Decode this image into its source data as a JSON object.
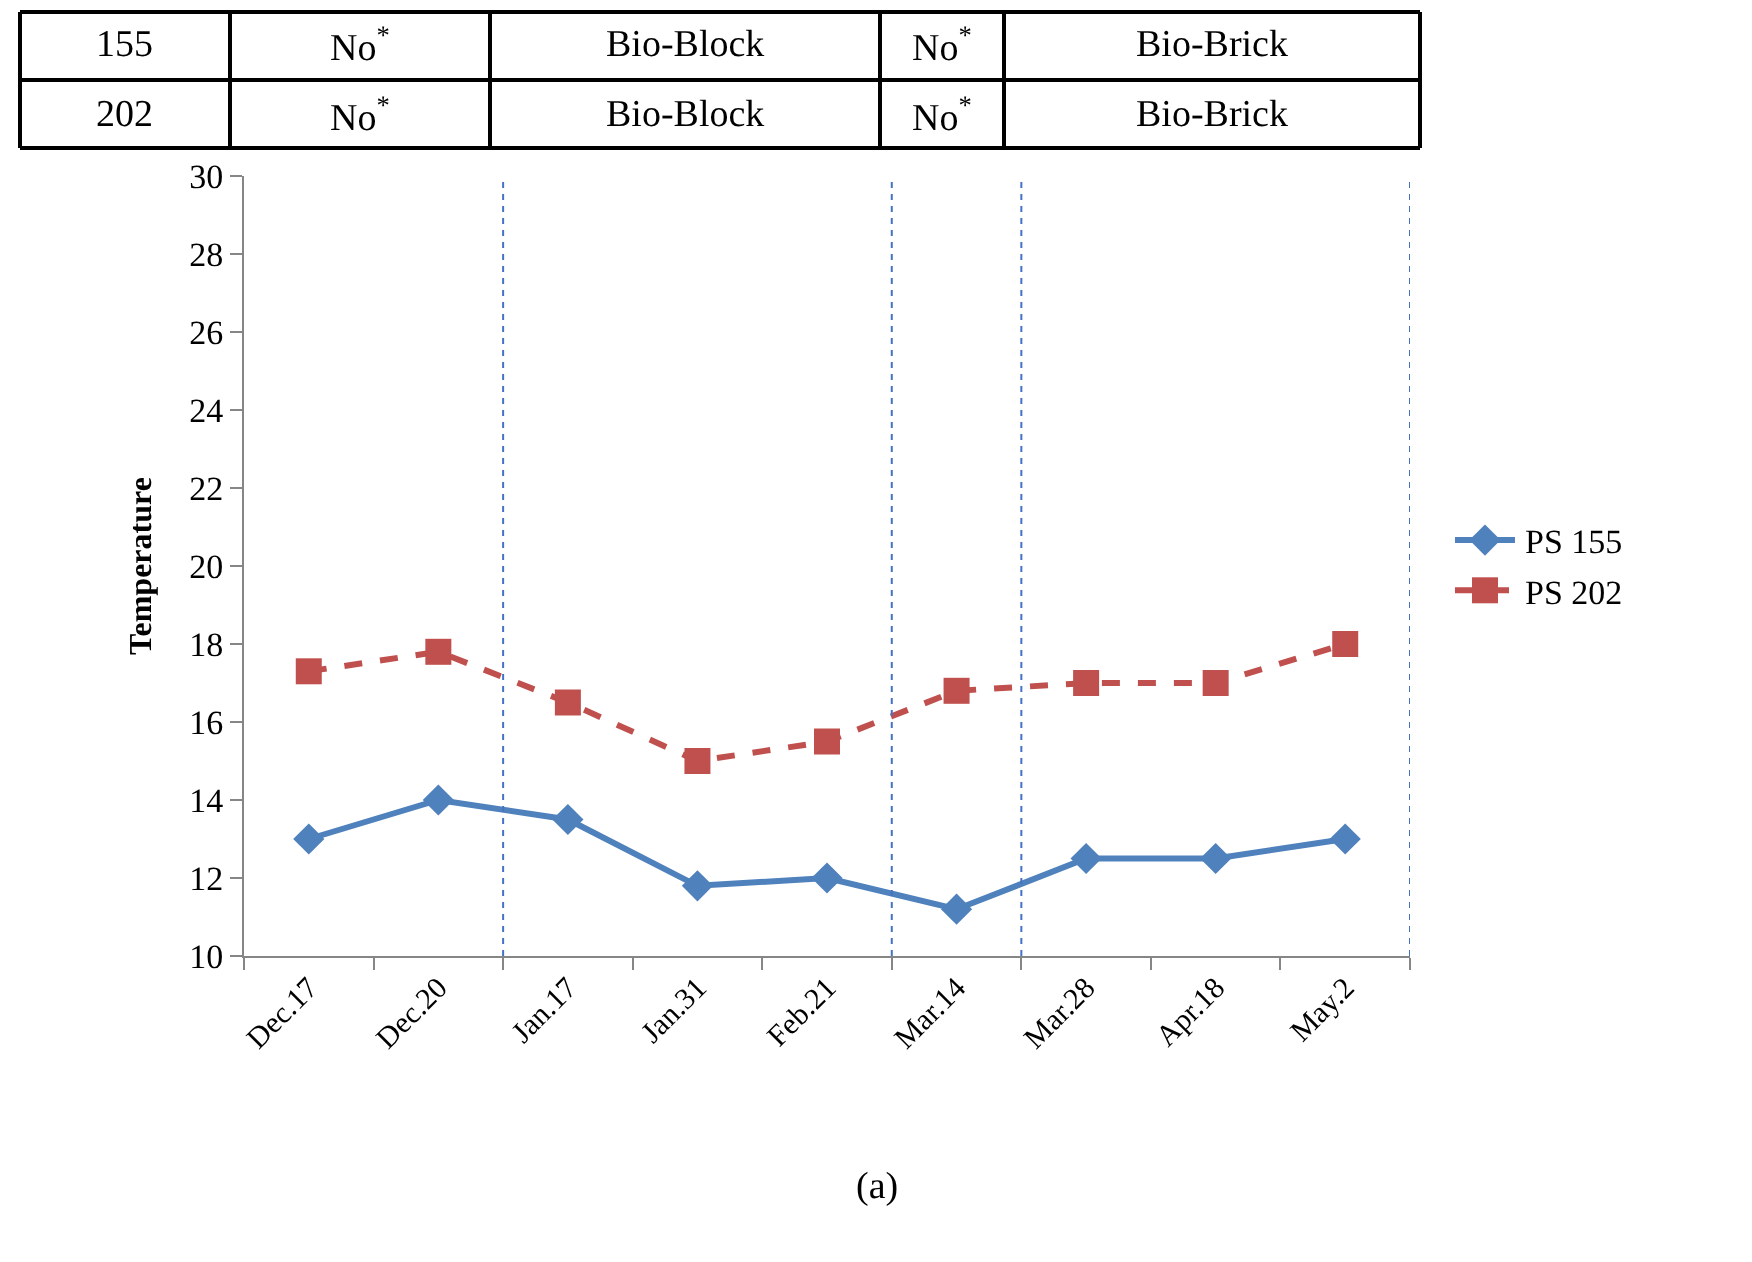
{
  "chart_data": {
    "type": "line",
    "categories": [
      "Dec.17",
      "Dec.20",
      "Jan.17",
      "Jan.31",
      "Feb.21",
      "Mar.14",
      "Mar.28",
      "Apr.18",
      "May.2"
    ],
    "series": [
      {
        "name": "PS 155",
        "color": "#4f81bd",
        "values": [
          13,
          14,
          13.5,
          11.8,
          12,
          11.2,
          12.5,
          12.5,
          13
        ],
        "marker": "diamond",
        "line_style": "solid"
      },
      {
        "name": "PS 202",
        "color": "#c0504d",
        "values": [
          17.3,
          17.8,
          16.5,
          15,
          15.5,
          16.8,
          17,
          17,
          18
        ],
        "marker": "square",
        "line_style": "dashed"
      }
    ],
    "ylabel": "Temperature",
    "ylim": [
      10,
      30
    ],
    "yticks": [
      10,
      12,
      14,
      16,
      18,
      20,
      22,
      24,
      26,
      28,
      30
    ],
    "legend": "right",
    "annotations": [
      "155",
      "No$^{*}$",
      "Bio-Block",
      "No$^{*}$",
      "Bio-Brick",
      "202",
      "No$^{*}$",
      "Bio-Block",
      "No$^{*}$",
      "Bio-Brick",
      "(a)"
    ]
  }
}
